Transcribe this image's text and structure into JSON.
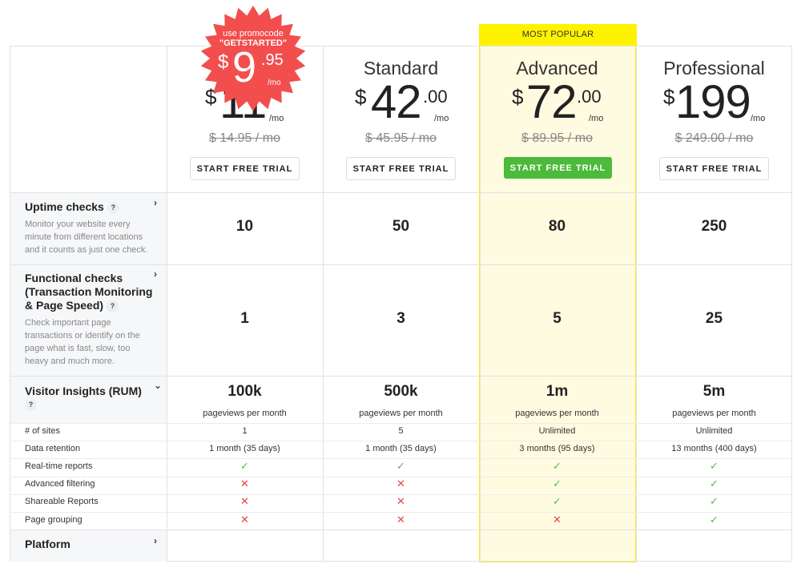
{
  "popular_label": "MOST POPULAR",
  "promo": {
    "line1": "use promocode",
    "code": "\"GETSTARTED\"",
    "dollar": "$",
    "big": "9",
    "cents": ".95",
    "per": "/mo"
  },
  "plans": [
    {
      "name": "",
      "dollar": "$",
      "amount": "11",
      "cents": "",
      "per": "/mo",
      "old_price": "$ 14.95 / mo",
      "cta": "START FREE TRIAL"
    },
    {
      "name": "Standard",
      "dollar": "$",
      "amount": "42",
      "cents": ".00",
      "per": "/mo",
      "old_price": "$ 45.95 / mo",
      "cta": "START FREE TRIAL"
    },
    {
      "name": "Advanced",
      "dollar": "$",
      "amount": "72",
      "cents": ".00",
      "per": "/mo",
      "old_price": "$ 89.95 / mo",
      "cta": "START FREE TRIAL"
    },
    {
      "name": "Professional",
      "dollar": "$",
      "amount": "199",
      "cents": "",
      "per": "/mo",
      "old_price": "$ 249.00 / mo",
      "cta": "START FREE TRIAL"
    }
  ],
  "features": {
    "uptime": {
      "title": "Uptime checks",
      "help": "?",
      "desc": [
        "Monitor your website every",
        "minute from different locations",
        "and it counts as just one check."
      ],
      "values": [
        "10",
        "50",
        "80",
        "250"
      ]
    },
    "functional": {
      "title": [
        "Functional checks",
        "(Transaction Monitoring",
        "& Page Speed)"
      ],
      "help": "?",
      "desc": [
        "Check important page",
        "transactions or identify on the",
        "page what is fast, slow, too",
        "heavy and much more."
      ],
      "values": [
        "1",
        "3",
        "5",
        "25"
      ]
    },
    "rum": {
      "title": "Visitor Insights (RUM)",
      "help": "?",
      "values": [
        "100k",
        "500k",
        "1m",
        "5m"
      ],
      "sub": "pageviews per month",
      "rows": [
        {
          "label": "# of sites",
          "values": [
            "1",
            "5",
            "Unlimited",
            "Unlimited"
          ]
        },
        {
          "label": "Data retention",
          "values": [
            "1 month (35 days)",
            "1 month (35 days)",
            "3 months (95 days)",
            "13 months (400 days)"
          ]
        },
        {
          "label": "Real-time reports",
          "flags": [
            true,
            true,
            true,
            true
          ]
        },
        {
          "label": "Advanced filtering",
          "flags": [
            false,
            false,
            true,
            true
          ]
        },
        {
          "label": "Shareable Reports",
          "flags": [
            false,
            false,
            true,
            true
          ]
        },
        {
          "label": "Page grouping",
          "flags": [
            false,
            false,
            false,
            true
          ]
        }
      ]
    },
    "platform": {
      "title": "Platform"
    }
  },
  "icons": {
    "check": "✓",
    "cross": "✕",
    "chevron_right": "›",
    "chevron_down": "⌄"
  },
  "colors": {
    "accent_green": "#4cba3a",
    "popular_yellow": "#fff200",
    "promo_red": "#f24e4e",
    "check": "#58b84a",
    "cross": "#e04848"
  }
}
